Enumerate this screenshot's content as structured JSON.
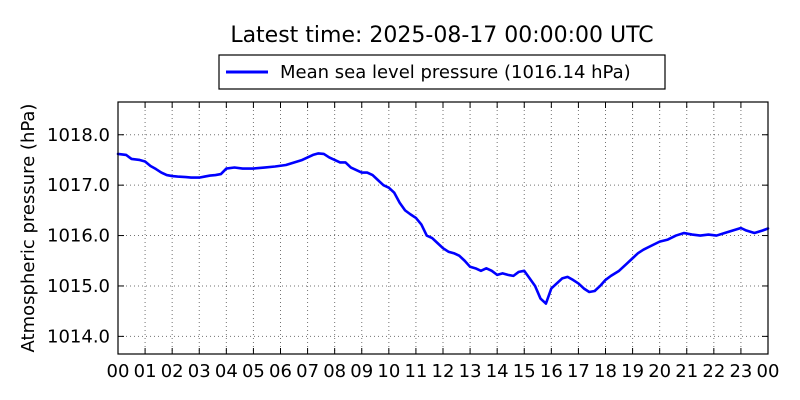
{
  "chart_data": {
    "type": "line",
    "title": "Latest time: 2025-08-17 00:00:00 UTC",
    "xlabel": "",
    "ylabel": "Atmospheric pressure (hPa)",
    "x_tick_labels": [
      "00",
      "01",
      "02",
      "03",
      "04",
      "05",
      "06",
      "07",
      "08",
      "09",
      "10",
      "11",
      "12",
      "13",
      "14",
      "15",
      "16",
      "17",
      "18",
      "19",
      "20",
      "21",
      "22",
      "23",
      "00"
    ],
    "xlim": [
      0,
      24
    ],
    "y_ticks": [
      1014.0,
      1015.0,
      1016.0,
      1017.0,
      1018.0
    ],
    "y_tick_labels": [
      "1014.0",
      "1015.0",
      "1016.0",
      "1017.0",
      "1018.0"
    ],
    "ylim": [
      1013.65,
      1018.65
    ],
    "grid": true,
    "legend_position": "top-center",
    "series": [
      {
        "name": "Mean sea level pressure (1016.14 hPa)",
        "color": "#0000ff",
        "x": [
          0.0,
          0.3,
          0.5,
          0.8,
          1.0,
          1.2,
          1.4,
          1.6,
          1.8,
          2.0,
          2.2,
          2.5,
          2.7,
          3.0,
          3.2,
          3.4,
          3.6,
          3.8,
          4.0,
          4.3,
          4.6,
          5.0,
          5.4,
          5.8,
          6.2,
          6.5,
          6.8,
          7.0,
          7.2,
          7.4,
          7.6,
          7.8,
          8.0,
          8.2,
          8.4,
          8.6,
          8.8,
          9.0,
          9.2,
          9.4,
          9.6,
          9.8,
          10.0,
          10.2,
          10.4,
          10.6,
          10.8,
          11.0,
          11.2,
          11.4,
          11.6,
          11.8,
          12.0,
          12.2,
          12.4,
          12.6,
          12.8,
          13.0,
          13.2,
          13.4,
          13.6,
          13.8,
          14.0,
          14.2,
          14.4,
          14.6,
          14.8,
          15.0,
          15.2,
          15.4,
          15.6,
          15.8,
          16.0,
          16.2,
          16.4,
          16.6,
          16.8,
          17.0,
          17.2,
          17.4,
          17.6,
          17.8,
          18.0,
          18.2,
          18.5,
          18.8,
          19.0,
          19.2,
          19.4,
          19.7,
          20.0,
          20.3,
          20.6,
          20.9,
          21.2,
          21.5,
          21.8,
          22.1,
          22.4,
          22.7,
          23.0,
          23.2,
          23.5,
          23.8,
          24.0
        ],
        "y": [
          1017.62,
          1017.6,
          1017.52,
          1017.5,
          1017.47,
          1017.38,
          1017.32,
          1017.25,
          1017.2,
          1017.18,
          1017.17,
          1017.16,
          1017.15,
          1017.15,
          1017.17,
          1017.19,
          1017.2,
          1017.22,
          1017.33,
          1017.35,
          1017.33,
          1017.33,
          1017.35,
          1017.37,
          1017.4,
          1017.45,
          1017.5,
          1017.55,
          1017.6,
          1017.63,
          1017.62,
          1017.55,
          1017.5,
          1017.45,
          1017.45,
          1017.35,
          1017.3,
          1017.25,
          1017.25,
          1017.2,
          1017.1,
          1017.0,
          1016.95,
          1016.85,
          1016.65,
          1016.5,
          1016.42,
          1016.35,
          1016.22,
          1016.0,
          1015.95,
          1015.85,
          1015.75,
          1015.68,
          1015.65,
          1015.6,
          1015.5,
          1015.38,
          1015.35,
          1015.3,
          1015.35,
          1015.3,
          1015.22,
          1015.25,
          1015.22,
          1015.2,
          1015.28,
          1015.3,
          1015.15,
          1015.0,
          1014.75,
          1014.65,
          1014.95,
          1015.05,
          1015.15,
          1015.18,
          1015.12,
          1015.05,
          1014.95,
          1014.88,
          1014.9,
          1015.0,
          1015.12,
          1015.2,
          1015.3,
          1015.45,
          1015.55,
          1015.65,
          1015.72,
          1015.8,
          1015.88,
          1015.92,
          1016.0,
          1016.05,
          1016.02,
          1016.0,
          1016.02,
          1016.0,
          1016.05,
          1016.1,
          1016.15,
          1016.1,
          1016.05,
          1016.1,
          1016.14
        ]
      }
    ]
  }
}
